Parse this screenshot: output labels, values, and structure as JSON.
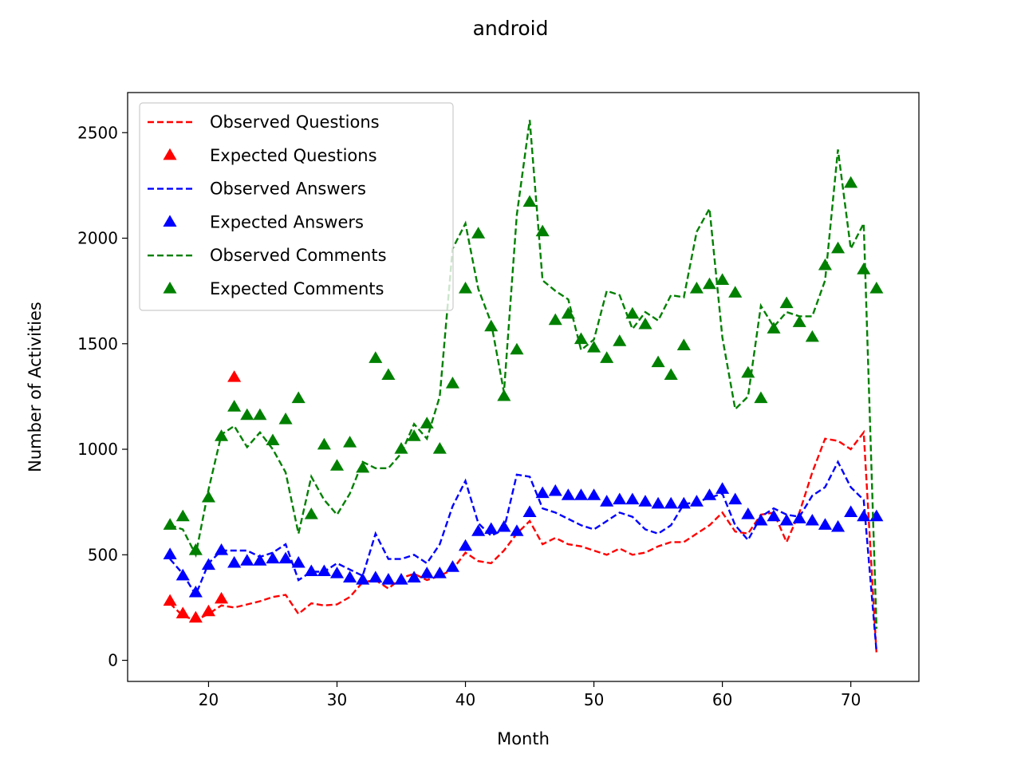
{
  "chart_data": {
    "type": "line",
    "title": "android",
    "xlabel": "Month",
    "ylabel": "Number of Activities",
    "xlim": [
      13.7,
      75.3
    ],
    "ylim": [
      -100,
      2690
    ],
    "xticks": [
      20,
      30,
      40,
      50,
      60,
      70
    ],
    "yticks": [
      0,
      500,
      1000,
      1500,
      2000,
      2500
    ],
    "grid": false,
    "legend_position": "upper-left",
    "colors": {
      "questions": "#ff0000",
      "answers": "#0000ff",
      "comments": "#008000"
    },
    "x": [
      17,
      18,
      19,
      20,
      21,
      22,
      23,
      24,
      25,
      26,
      27,
      28,
      29,
      30,
      31,
      32,
      33,
      34,
      35,
      36,
      37,
      38,
      39,
      40,
      41,
      42,
      43,
      44,
      45,
      46,
      47,
      48,
      49,
      50,
      51,
      52,
      53,
      54,
      55,
      56,
      57,
      58,
      59,
      60,
      61,
      62,
      63,
      64,
      65,
      66,
      67,
      68,
      69,
      70,
      71,
      72
    ],
    "series": [
      {
        "name": "Observed Questions",
        "style": "dashed",
        "color": "#ff0000",
        "values": [
          270,
          210,
          190,
          220,
          260,
          250,
          265,
          280,
          300,
          310,
          220,
          270,
          260,
          265,
          300,
          370,
          380,
          340,
          390,
          410,
          380,
          400,
          430,
          510,
          470,
          460,
          520,
          600,
          660,
          550,
          580,
          550,
          540,
          520,
          500,
          530,
          500,
          510,
          540,
          560,
          560,
          600,
          640,
          700,
          610,
          600,
          690,
          700,
          560,
          700,
          890,
          1050,
          1040,
          1000,
          1080,
          30
        ]
      },
      {
        "name": "Expected Questions",
        "style": "triangle",
        "color": "#ff0000",
        "values": [
          280,
          220,
          200,
          230,
          290,
          1340,
          null,
          null,
          null,
          null,
          null,
          null,
          null,
          null,
          null,
          null,
          null,
          null,
          null,
          null,
          null,
          null,
          null,
          null,
          null,
          null,
          null,
          null,
          null,
          null,
          null,
          null,
          null,
          null,
          null,
          null,
          null,
          null,
          null,
          null,
          null,
          null,
          null,
          null,
          null,
          null,
          null,
          null,
          null,
          null,
          null,
          null,
          null,
          null,
          null,
          null
        ]
      },
      {
        "name": "Observed Answers",
        "style": "dashed",
        "color": "#0000ff",
        "values": [
          480,
          410,
          310,
          460,
          520,
          520,
          520,
          490,
          510,
          550,
          380,
          420,
          420,
          460,
          430,
          400,
          600,
          480,
          480,
          500,
          460,
          550,
          730,
          850,
          650,
          590,
          620,
          880,
          870,
          720,
          700,
          670,
          640,
          620,
          660,
          700,
          680,
          620,
          600,
          640,
          740,
          750,
          770,
          790,
          640,
          570,
          680,
          720,
          690,
          680,
          780,
          820,
          940,
          820,
          760,
          40
        ]
      },
      {
        "name": "Expected Answers",
        "style": "triangle",
        "color": "#0000ff",
        "values": [
          500,
          400,
          320,
          450,
          520,
          460,
          470,
          470,
          480,
          480,
          460,
          420,
          420,
          410,
          390,
          380,
          390,
          380,
          380,
          390,
          410,
          410,
          440,
          540,
          610,
          620,
          630,
          610,
          700,
          790,
          800,
          780,
          780,
          780,
          750,
          760,
          760,
          750,
          740,
          740,
          740,
          750,
          780,
          810,
          760,
          690,
          660,
          680,
          660,
          670,
          660,
          640,
          630,
          700,
          680,
          680
        ]
      },
      {
        "name": "Observed Comments",
        "style": "dashed",
        "color": "#008000",
        "values": [
          640,
          620,
          500,
          810,
          1070,
          1110,
          1010,
          1080,
          1000,
          890,
          600,
          870,
          760,
          690,
          790,
          940,
          910,
          910,
          980,
          1120,
          1050,
          1250,
          1950,
          2070,
          1760,
          1600,
          1270,
          2110,
          2560,
          1800,
          1750,
          1710,
          1470,
          1520,
          1750,
          1730,
          1570,
          1650,
          1610,
          1730,
          1720,
          2030,
          2140,
          1530,
          1190,
          1250,
          1680,
          1580,
          1650,
          1630,
          1630,
          1800,
          2420,
          1950,
          2070,
          150
        ]
      },
      {
        "name": "Expected Comments",
        "style": "triangle",
        "color": "#008000",
        "values": [
          640,
          680,
          520,
          770,
          1060,
          1200,
          1160,
          1160,
          1040,
          1140,
          1240,
          690,
          1020,
          920,
          1030,
          910,
          1430,
          1350,
          1000,
          1060,
          1120,
          1000,
          1310,
          1760,
          2020,
          1580,
          1250,
          1470,
          2170,
          2030,
          1610,
          1640,
          1520,
          1480,
          1430,
          1510,
          1640,
          1590,
          1410,
          1350,
          1490,
          1760,
          1780,
          1800,
          1740,
          1360,
          1240,
          1570,
          1690,
          1600,
          1530,
          1870,
          1950,
          2260,
          1850,
          1760
        ]
      }
    ]
  }
}
